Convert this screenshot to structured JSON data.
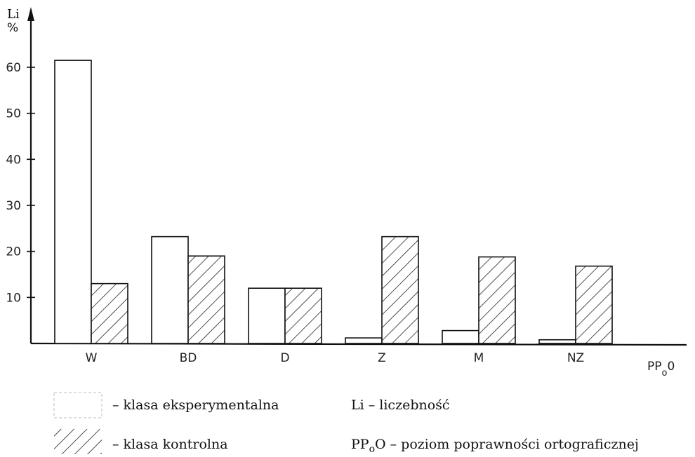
{
  "chart_data": {
    "type": "bar",
    "categories": [
      "W",
      "BD",
      "D",
      "Z",
      "M",
      "NZ"
    ],
    "series": [
      {
        "name": "– klasa eksperymentalna",
        "pattern": "none",
        "values": [
          61.5,
          23.2,
          12,
          1.2,
          2.8,
          0.8
        ]
      },
      {
        "name": "– klasa kontrolna",
        "pattern": "hatch",
        "values": [
          13,
          19,
          12,
          23.2,
          18.8,
          16.8
        ]
      }
    ],
    "yticks": [
      10,
      20,
      30,
      40,
      50,
      60
    ],
    "ylim": [
      0,
      67
    ],
    "ylabel": "Li",
    "yunit": "%",
    "xlabel_main": "PP",
    "xlabel_sub": "o",
    "xlabel_tail": "0",
    "legend_placement": "bottom",
    "abbreviations": [
      {
        "abbr_main": "Li",
        "abbr_sub": "",
        "abbr_tail": "",
        "desc": " – liczebność"
      },
      {
        "abbr_main": "PP",
        "abbr_sub": "o",
        "abbr_tail": "O",
        "desc": " – poziom poprawności ortograficznej"
      }
    ]
  }
}
